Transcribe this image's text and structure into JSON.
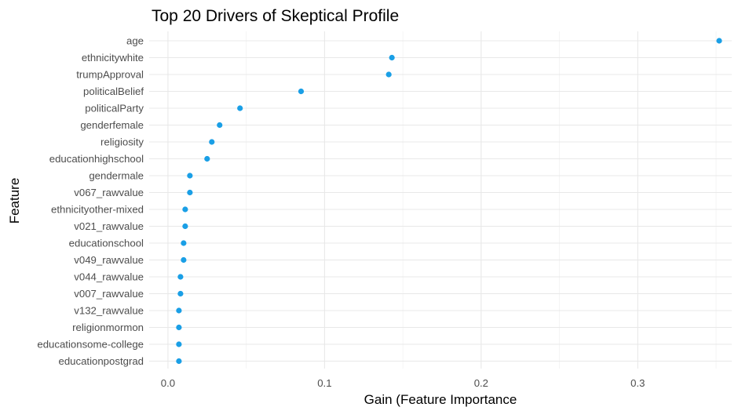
{
  "chart_data": {
    "type": "scatter",
    "title": "Top 20 Drivers of Skeptical Profile",
    "xlabel": "Gain (Feature Importance",
    "ylabel": "Feature",
    "xlim": [
      -0.012,
      0.36
    ],
    "x_ticks": [
      0.0,
      0.1,
      0.2,
      0.3
    ],
    "x_tick_labels": [
      "0.0",
      "0.1",
      "0.2",
      "0.3"
    ],
    "grid": true,
    "point_color": "#1a9fe6",
    "features": [
      "age",
      "ethnicitywhite",
      "trumpApproval",
      "politicalBelief",
      "politicalParty",
      "genderfemale",
      "religiosity",
      "educationhighschool",
      "gendermale",
      "v067_rawvalue",
      "ethnicityother-mixed",
      "v021_rawvalue",
      "educationschool",
      "v049_rawvalue",
      "v044_rawvalue",
      "v007_rawvalue",
      "v132_rawvalue",
      "religionmormon",
      "educationsome-college",
      "educationpostgrad"
    ],
    "values": [
      0.352,
      0.143,
      0.141,
      0.085,
      0.046,
      0.033,
      0.028,
      0.025,
      0.014,
      0.014,
      0.011,
      0.011,
      0.01,
      0.01,
      0.008,
      0.008,
      0.007,
      0.007,
      0.007,
      0.007
    ]
  }
}
